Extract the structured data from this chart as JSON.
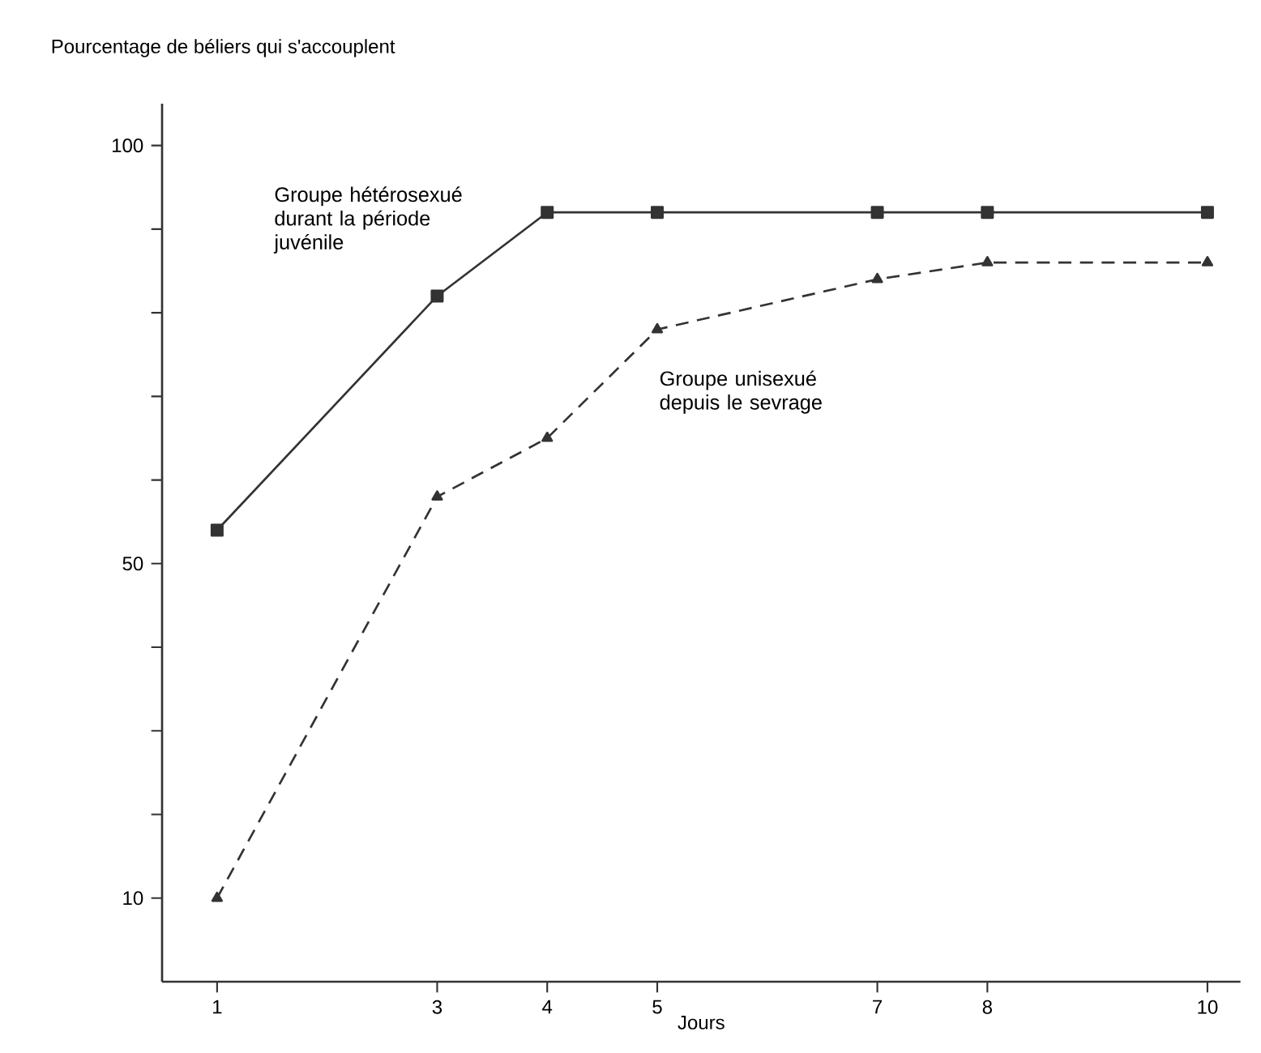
{
  "chart_data": {
    "type": "line",
    "ylabel": "Pourcentage de béliers qui s'accouplent",
    "xlabel": "Jours",
    "x": [
      1,
      3,
      4,
      5,
      7,
      8,
      10
    ],
    "series": [
      {
        "name": "Groupe hétérosexué durant la période juvénile",
        "color": "#333333",
        "marker": "square",
        "line_style": "solid",
        "values": [
          54,
          82,
          92,
          92,
          92,
          92,
          92
        ]
      },
      {
        "name": "Groupe unisexué depuis le sevrage",
        "color": "#333333",
        "marker": "triangle",
        "line_style": "dashed",
        "values": [
          10,
          58,
          65,
          78,
          84,
          86,
          86
        ]
      }
    ],
    "xlim": [
      0.5,
      10.3
    ],
    "ylim": [
      0,
      105
    ],
    "xticks": [
      1,
      3,
      4,
      5,
      7,
      8,
      10
    ],
    "yticks": [
      10,
      {
        "value": 20,
        "label": null
      },
      {
        "value": 30,
        "label": null
      },
      {
        "value": 40,
        "label": null
      },
      50,
      {
        "value": 60,
        "label": null
      },
      {
        "value": 70,
        "label": null
      },
      {
        "value": 80,
        "label": null
      },
      {
        "value": 90,
        "label": null
      },
      100
    ],
    "grid": false,
    "legend": false
  }
}
